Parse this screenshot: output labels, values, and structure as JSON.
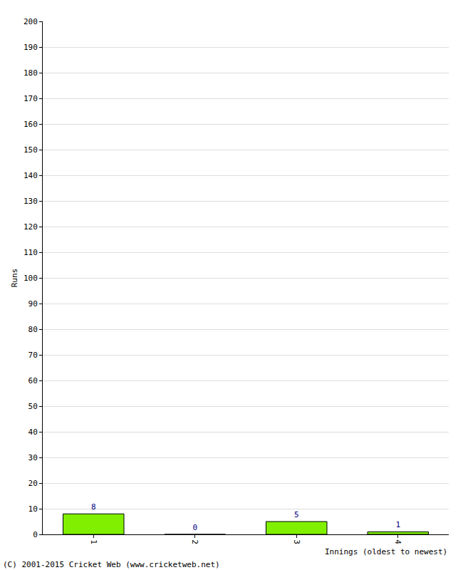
{
  "chart_data": {
    "type": "bar",
    "categories": [
      "1",
      "2",
      "3",
      "4"
    ],
    "values": [
      8,
      0,
      5,
      1
    ],
    "color": "#80f000",
    "x_label": "Innings (oldest to newest)",
    "y_label": "Runs",
    "ylim": [
      0,
      200
    ],
    "yticks": [
      0,
      10,
      20,
      30,
      40,
      50,
      60,
      70,
      80,
      90,
      100,
      110,
      120,
      130,
      140,
      150,
      160,
      170,
      180,
      190,
      200
    ],
    "grid": true,
    "data_labels": true,
    "annotations": [
      "(C) 2001-2015 Cricket Web (www.cricketweb.net)"
    ]
  }
}
